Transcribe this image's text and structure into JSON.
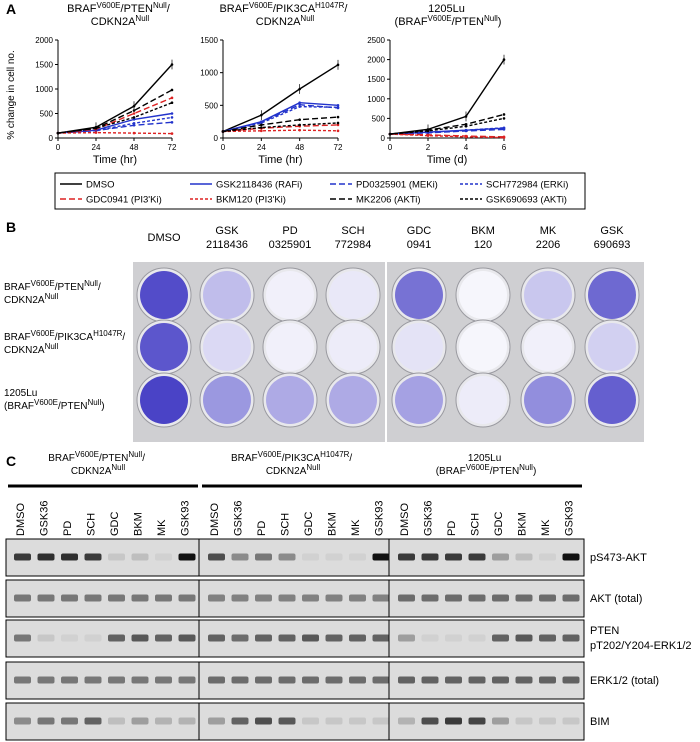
{
  "panel_labels": {
    "a": "A",
    "b": "B",
    "c": "C"
  },
  "cell_lines": [
    {
      "line1": "BRAF",
      "sup1": "V600E",
      "mid": "/PTEN",
      "sup2": "Null",
      "tail": "/",
      "line2": "CDKN2A",
      "sup3": "Null"
    },
    {
      "line1": "BRAF",
      "sup1": "V600E",
      "mid": "/PIK3CA",
      "sup2": "H1047R",
      "tail": "/",
      "line2": "CDKN2A",
      "sup3": "Null"
    },
    {
      "line1": "1205Lu",
      "line2a": "(BRAF",
      "sup2": "V600E",
      "line2b": "/PTEN",
      "sup3": "Null",
      "line2c": ")"
    }
  ],
  "legend": [
    {
      "label": "DMSO",
      "color": "#000000",
      "dash": "solid"
    },
    {
      "label": "GSK2118436 (RAFi)",
      "color": "#2233cc",
      "dash": "solid"
    },
    {
      "label": "PD0325901 (MEKi)",
      "color": "#2233cc",
      "dash": "longdash"
    },
    {
      "label": "SCH772984 (ERKi)",
      "color": "#2233cc",
      "dash": "dash"
    },
    {
      "label": "GDC0941 (PI3'Ki)",
      "color": "#dd2222",
      "dash": "longdash"
    },
    {
      "label": "BKM120 (PI3'Ki)",
      "color": "#dd2222",
      "dash": "dash"
    },
    {
      "label": "MK2206 (AKTi)",
      "color": "#000000",
      "dash": "longdash"
    },
    {
      "label": "GSK690693 (AKTi)",
      "color": "#000000",
      "dash": "dash"
    }
  ],
  "chart_data": [
    {
      "type": "line",
      "ylabel": "% change in cell no.",
      "xlabel": "Time (hr)",
      "x": [
        0,
        24,
        48,
        72
      ],
      "x_ticks": [
        "0",
        "24",
        "48",
        "72"
      ],
      "ylim": [
        0,
        2000
      ],
      "y_ticks": [
        "0",
        "500",
        "1000",
        "1500",
        "2000"
      ],
      "series": [
        {
          "name": "DMSO",
          "values": [
            100,
            220,
            650,
            1500
          ]
        },
        {
          "name": "GSK2118436 (RAFi)",
          "values": [
            100,
            160,
            380,
            500
          ]
        },
        {
          "name": "PD0325901 (MEKi)",
          "values": [
            100,
            150,
            260,
            320
          ]
        },
        {
          "name": "SCH772984 (ERKi)",
          "values": [
            100,
            150,
            300,
            420
          ]
        },
        {
          "name": "GDC0941 (PI3'Ki)",
          "values": [
            100,
            180,
            500,
            820
          ]
        },
        {
          "name": "BKM120 (PI3'Ki)",
          "values": [
            100,
            110,
            100,
            90
          ]
        },
        {
          "name": "MK2206 (AKTi)",
          "values": [
            100,
            200,
            560,
            980
          ]
        },
        {
          "name": "GSK690693 (AKTi)",
          "values": [
            100,
            200,
            420,
            720
          ]
        }
      ]
    },
    {
      "type": "line",
      "xlabel": "Time (hr)",
      "x": [
        0,
        24,
        48,
        72
      ],
      "x_ticks": [
        "0",
        "24",
        "48",
        "72"
      ],
      "ylim": [
        0,
        1500
      ],
      "y_ticks": [
        "0",
        "500",
        "1000",
        "1500"
      ],
      "series": [
        {
          "name": "DMSO",
          "values": [
            100,
            350,
            750,
            1120
          ]
        },
        {
          "name": "GSK2118436 (RAFi)",
          "values": [
            100,
            250,
            540,
            500
          ]
        },
        {
          "name": "PD0325901 (MEKi)",
          "values": [
            100,
            240,
            510,
            460
          ]
        },
        {
          "name": "SCH772984 (ERKi)",
          "values": [
            100,
            230,
            480,
            470
          ]
        },
        {
          "name": "GDC0941 (PI3'Ki)",
          "values": [
            100,
            150,
            180,
            200
          ]
        },
        {
          "name": "BKM120 (PI3'Ki)",
          "values": [
            100,
            110,
            120,
            110
          ]
        },
        {
          "name": "MK2206 (AKTi)",
          "values": [
            100,
            200,
            280,
            320
          ]
        },
        {
          "name": "GSK690693 (AKTi)",
          "values": [
            100,
            160,
            200,
            230
          ]
        }
      ]
    },
    {
      "type": "line",
      "xlabel": "Time (d)",
      "x": [
        0,
        2,
        4,
        6
      ],
      "x_ticks": [
        "0",
        "2",
        "4",
        "6"
      ],
      "ylim": [
        0,
        2500
      ],
      "y_ticks": [
        "0",
        "500",
        "1000",
        "1500",
        "2000",
        "2500"
      ],
      "series": [
        {
          "name": "DMSO",
          "values": [
            100,
            220,
            550,
            2000
          ]
        },
        {
          "name": "GSK2118436 (RAFi)",
          "values": [
            100,
            150,
            200,
            250
          ]
        },
        {
          "name": "PD0325901 (MEKi)",
          "values": [
            100,
            130,
            180,
            220
          ]
        },
        {
          "name": "SCH772984 (ERKi)",
          "values": [
            100,
            140,
            200,
            260
          ]
        },
        {
          "name": "GDC0941 (PI3'Ki)",
          "values": [
            100,
            80,
            50,
            30
          ]
        },
        {
          "name": "BKM120 (PI3'Ki)",
          "values": [
            100,
            60,
            30,
            10
          ]
        },
        {
          "name": "MK2206 (AKTi)",
          "values": [
            100,
            200,
            350,
            600
          ]
        },
        {
          "name": "GSK690693 (AKTi)",
          "values": [
            100,
            180,
            300,
            500
          ]
        }
      ]
    }
  ],
  "panel_b": {
    "treatments": [
      {
        "line1": "DMSO",
        "line2": ""
      },
      {
        "line1": "GSK",
        "line2": "2118436"
      },
      {
        "line1": "PD",
        "line2": "0325901"
      },
      {
        "line1": "SCH",
        "line2": "772984"
      },
      {
        "line1": "GDC",
        "line2": "0941"
      },
      {
        "line1": "BKM",
        "line2": "120"
      },
      {
        "line1": "MK",
        "line2": "2206"
      },
      {
        "line1": "GSK",
        "line2": "690693"
      }
    ],
    "stain_levels": [
      [
        0.95,
        0.35,
        0.08,
        0.12,
        0.75,
        0.05,
        0.3,
        0.8
      ],
      [
        0.9,
        0.2,
        0.08,
        0.1,
        0.15,
        0.05,
        0.08,
        0.25
      ],
      [
        1.0,
        0.55,
        0.45,
        0.45,
        0.5,
        0.1,
        0.6,
        0.85
      ]
    ],
    "stain_color": "#4a43c6"
  },
  "panel_c": {
    "lanes": [
      "DMSO",
      "GSK36",
      "PD",
      "SCH",
      "GDC",
      "BKM",
      "MK",
      "GSK93"
    ],
    "blots": [
      {
        "label": "pS473-AKT",
        "label2": "",
        "groups": [
          [
            0.8,
            0.85,
            0.85,
            0.8,
            0.1,
            0.15,
            0.05,
            1.0
          ],
          [
            0.7,
            0.4,
            0.5,
            0.4,
            0.05,
            0.05,
            0.05,
            1.0
          ],
          [
            0.8,
            0.8,
            0.8,
            0.8,
            0.3,
            0.15,
            0.05,
            1.0
          ]
        ]
      },
      {
        "label": "AKT (total)",
        "label2": "",
        "groups": [
          [
            0.5,
            0.5,
            0.5,
            0.5,
            0.5,
            0.5,
            0.5,
            0.5
          ],
          [
            0.45,
            0.45,
            0.45,
            0.45,
            0.45,
            0.45,
            0.45,
            0.45
          ],
          [
            0.55,
            0.55,
            0.55,
            0.55,
            0.55,
            0.55,
            0.55,
            0.55
          ]
        ]
      },
      {
        "label": "PTEN",
        "label2": "pT202/Y204-ERK1/2",
        "groups": [
          [
            0.5,
            0.1,
            0.05,
            0.05,
            0.6,
            0.65,
            0.6,
            0.65
          ],
          [
            0.6,
            0.55,
            0.6,
            0.6,
            0.65,
            0.6,
            0.6,
            0.6
          ],
          [
            0.3,
            0.05,
            0.05,
            0.05,
            0.6,
            0.65,
            0.6,
            0.6
          ]
        ]
      },
      {
        "label": "ERK1/2 (total)",
        "label2": "",
        "groups": [
          [
            0.5,
            0.5,
            0.5,
            0.5,
            0.5,
            0.5,
            0.5,
            0.5
          ],
          [
            0.55,
            0.55,
            0.55,
            0.55,
            0.55,
            0.55,
            0.55,
            0.55
          ],
          [
            0.6,
            0.6,
            0.6,
            0.6,
            0.6,
            0.6,
            0.6,
            0.6
          ]
        ]
      },
      {
        "label": "BIM",
        "label2": "",
        "groups": [
          [
            0.4,
            0.5,
            0.5,
            0.6,
            0.15,
            0.3,
            0.2,
            0.2
          ],
          [
            0.3,
            0.6,
            0.7,
            0.65,
            0.1,
            0.1,
            0.1,
            0.1
          ],
          [
            0.2,
            0.7,
            0.8,
            0.75,
            0.3,
            0.1,
            0.1,
            0.1
          ]
        ]
      }
    ]
  }
}
